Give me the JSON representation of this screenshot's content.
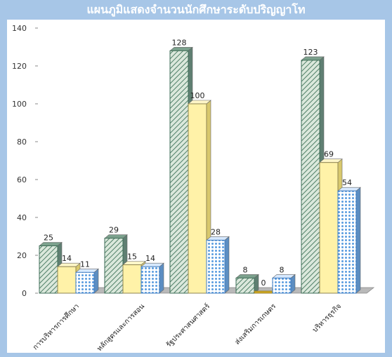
{
  "title": "แผนภูมิแสดงจำนวนนักศึกษาระดับปริญญาโท",
  "chart_data": {
    "type": "bar",
    "title": "แผนภูมิแสดงจำนวนนักศึกษาระดับปริญญาโท",
    "xlabel": "",
    "ylabel": "",
    "ylim": [
      0,
      140
    ],
    "yticks": [
      0,
      20,
      40,
      60,
      80,
      100,
      120,
      140
    ],
    "grid": false,
    "legend": "none",
    "categories": [
      "การบริหารการศึกษา",
      "หลักสูตรและการสอน",
      "รัฐประศาสนศาสตร์",
      "ส่งเสริมการเกษตร",
      "บริหารธุรกิจ"
    ],
    "series": [
      {
        "values": [
          25,
          29,
          128,
          8,
          123
        ],
        "color": "#8fb7a4",
        "pattern": "diagonal-hatch"
      },
      {
        "values": [
          14,
          15,
          100,
          0,
          69
        ],
        "color": "#fff2a8",
        "pattern": "solid"
      },
      {
        "values": [
          11,
          14,
          28,
          8,
          54
        ],
        "color": "#5b9de0",
        "pattern": "dots"
      }
    ]
  }
}
